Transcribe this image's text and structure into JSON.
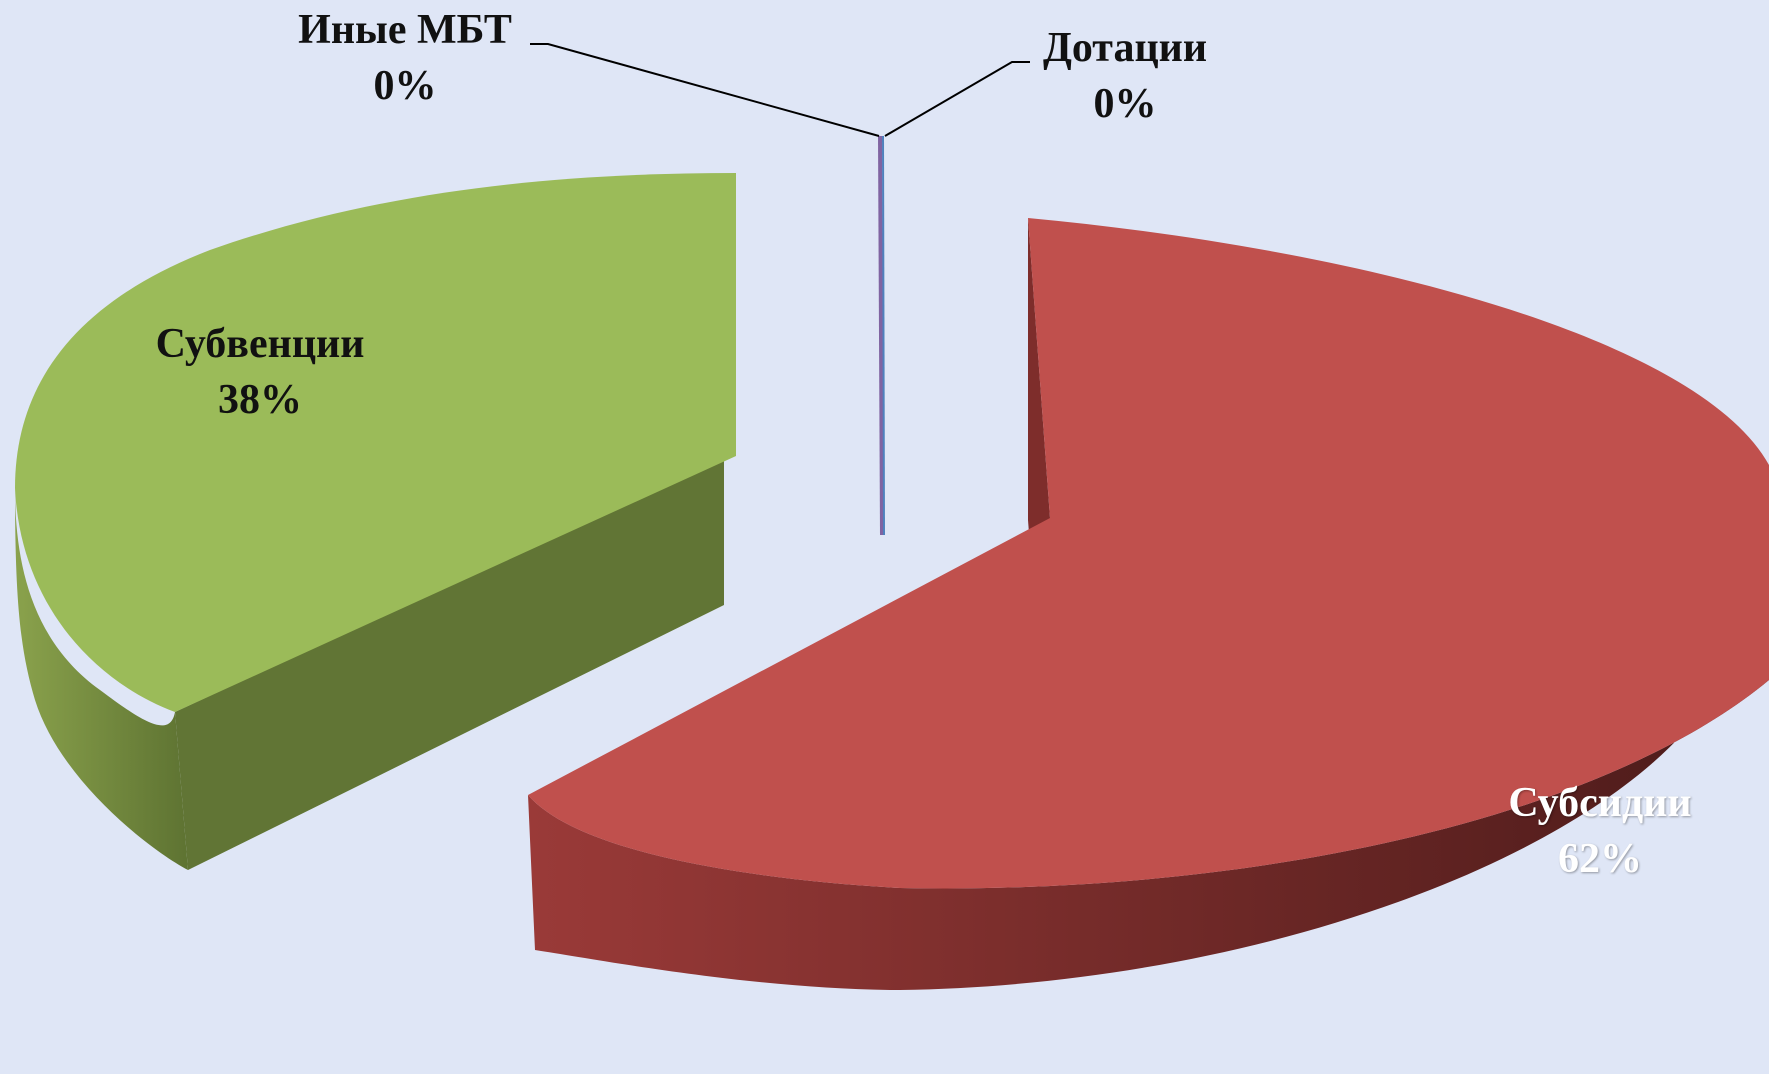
{
  "chart_data": {
    "type": "pie",
    "title": "",
    "style": "3d-exploded",
    "slices": [
      {
        "name": "Субсидии",
        "value": 62,
        "percent_label": "62%",
        "color": "#c0504d",
        "side_color": "#7a2a29"
      },
      {
        "name": "Субвенции",
        "value": 38,
        "percent_label": "38%",
        "color": "#9bbb59",
        "side_color": "#617535"
      },
      {
        "name": "Иные МБТ",
        "value": 0,
        "percent_label": "0%",
        "color": "#8064a2",
        "side_color": "#5a4676"
      },
      {
        "name": "Дотации",
        "value": 0,
        "percent_label": "0%",
        "color": "#4f81bd",
        "side_color": "#365b86"
      }
    ],
    "legend": "none",
    "background_color": "#dfe6f6"
  }
}
